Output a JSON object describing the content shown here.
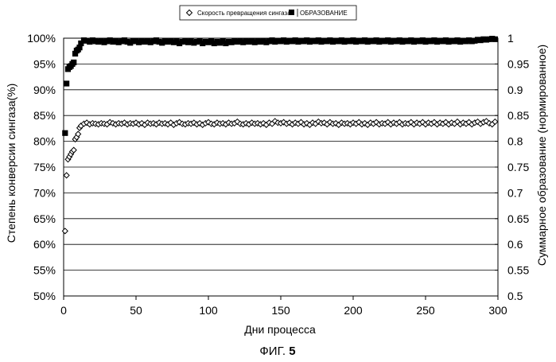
{
  "chart_data": {
    "type": "scatter",
    "title": "",
    "figure_label_text": "ФИГ.",
    "figure_label_number": "5",
    "xlabel": "Дни процесса",
    "ylabel_left": "Степень конверсии сингаза(%)",
    "ylabel_right": "Суммарное образование (нормированное)",
    "xlim": [
      0,
      300
    ],
    "x_ticks": [
      "0",
      "50",
      "100",
      "150",
      "200",
      "250",
      "300"
    ],
    "ylim_left": [
      50,
      100
    ],
    "y_ticks_left": [
      "50%",
      "55%",
      "60%",
      "65%",
      "70%",
      "75%",
      "80%",
      "85%",
      "90%",
      "95%",
      "100%"
    ],
    "ylim_right": [
      0.5,
      1.0
    ],
    "y_ticks_right": [
      "0.5",
      "0.55",
      "0.6",
      "0.65",
      "0.7",
      "0.75",
      "0.8",
      "0.85",
      "0.9",
      "0.95",
      "1"
    ],
    "grid": "horizontal",
    "legend_position": "top-center",
    "series": [
      {
        "name": "Скорость превращения сингаза",
        "axis": "left",
        "marker": "open-diamond",
        "color": "#000000",
        "points": [
          [
            1,
            62.6
          ],
          [
            2,
            73.4
          ],
          [
            3,
            76.5
          ],
          [
            4,
            77.0
          ],
          [
            5,
            77.5
          ],
          [
            6,
            78.0
          ],
          [
            7,
            78.3
          ],
          [
            8,
            80.4
          ],
          [
            9,
            80.8
          ],
          [
            10,
            81.4
          ],
          [
            11,
            82.6
          ],
          [
            12,
            83.0
          ],
          [
            14,
            83.4
          ],
          [
            16,
            83.6
          ],
          [
            18,
            83.3
          ],
          [
            20,
            83.5
          ],
          [
            22,
            83.4
          ],
          [
            24,
            83.3
          ],
          [
            26,
            83.5
          ],
          [
            28,
            83.4
          ],
          [
            30,
            83.3
          ],
          [
            32,
            83.7
          ],
          [
            34,
            83.5
          ],
          [
            36,
            83.3
          ],
          [
            38,
            83.5
          ],
          [
            40,
            83.4
          ],
          [
            42,
            83.6
          ],
          [
            44,
            83.3
          ],
          [
            46,
            83.5
          ],
          [
            48,
            83.4
          ],
          [
            50,
            83.6
          ],
          [
            52,
            83.3
          ],
          [
            54,
            83.5
          ],
          [
            56,
            83.2
          ],
          [
            58,
            83.6
          ],
          [
            60,
            83.4
          ],
          [
            62,
            83.5
          ],
          [
            64,
            83.3
          ],
          [
            66,
            83.6
          ],
          [
            68,
            83.4
          ],
          [
            70,
            83.5
          ],
          [
            72,
            83.3
          ],
          [
            74,
            83.6
          ],
          [
            76,
            83.2
          ],
          [
            78,
            83.5
          ],
          [
            80,
            83.7
          ],
          [
            82,
            83.4
          ],
          [
            84,
            83.3
          ],
          [
            86,
            83.5
          ],
          [
            88,
            83.4
          ],
          [
            90,
            83.6
          ],
          [
            92,
            83.3
          ],
          [
            94,
            83.5
          ],
          [
            96,
            83.2
          ],
          [
            98,
            83.5
          ],
          [
            100,
            83.7
          ],
          [
            102,
            83.4
          ],
          [
            104,
            83.3
          ],
          [
            106,
            83.6
          ],
          [
            108,
            83.4
          ],
          [
            110,
            83.5
          ],
          [
            112,
            83.3
          ],
          [
            114,
            83.6
          ],
          [
            116,
            83.4
          ],
          [
            118,
            83.5
          ],
          [
            120,
            83.8
          ],
          [
            122,
            83.4
          ],
          [
            124,
            83.3
          ],
          [
            126,
            83.5
          ],
          [
            128,
            83.3
          ],
          [
            130,
            83.6
          ],
          [
            132,
            83.4
          ],
          [
            134,
            83.5
          ],
          [
            136,
            83.3
          ],
          [
            138,
            83.5
          ],
          [
            140,
            83.2
          ],
          [
            142,
            83.6
          ],
          [
            144,
            83.4
          ],
          [
            146,
            83.9
          ],
          [
            148,
            83.6
          ],
          [
            150,
            83.5
          ],
          [
            152,
            83.7
          ],
          [
            154,
            83.4
          ],
          [
            156,
            83.6
          ],
          [
            158,
            83.3
          ],
          [
            160,
            83.6
          ],
          [
            162,
            83.4
          ],
          [
            164,
            83.7
          ],
          [
            166,
            83.3
          ],
          [
            168,
            83.5
          ],
          [
            170,
            83.2
          ],
          [
            172,
            83.6
          ],
          [
            174,
            83.4
          ],
          [
            176,
            83.8
          ],
          [
            178,
            83.5
          ],
          [
            180,
            83.6
          ],
          [
            182,
            83.3
          ],
          [
            184,
            83.7
          ],
          [
            186,
            83.4
          ],
          [
            188,
            83.5
          ],
          [
            190,
            83.2
          ],
          [
            192,
            83.6
          ],
          [
            194,
            83.4
          ],
          [
            196,
            83.5
          ],
          [
            198,
            83.3
          ],
          [
            200,
            83.6
          ],
          [
            202,
            83.4
          ],
          [
            204,
            83.7
          ],
          [
            206,
            83.3
          ],
          [
            208,
            83.5
          ],
          [
            210,
            83.2
          ],
          [
            212,
            83.6
          ],
          [
            214,
            83.4
          ],
          [
            216,
            83.7
          ],
          [
            218,
            83.3
          ],
          [
            220,
            83.5
          ],
          [
            222,
            83.4
          ],
          [
            224,
            83.7
          ],
          [
            226,
            83.3
          ],
          [
            228,
            83.6
          ],
          [
            230,
            83.4
          ],
          [
            232,
            83.7
          ],
          [
            234,
            83.3
          ],
          [
            236,
            83.5
          ],
          [
            238,
            83.4
          ],
          [
            240,
            83.7
          ],
          [
            242,
            83.3
          ],
          [
            244,
            83.6
          ],
          [
            246,
            83.4
          ],
          [
            248,
            83.7
          ],
          [
            250,
            83.3
          ],
          [
            252,
            83.6
          ],
          [
            254,
            83.4
          ],
          [
            256,
            83.7
          ],
          [
            258,
            83.3
          ],
          [
            260,
            83.6
          ],
          [
            262,
            83.4
          ],
          [
            264,
            83.7
          ],
          [
            266,
            83.3
          ],
          [
            268,
            83.6
          ],
          [
            270,
            83.4
          ],
          [
            272,
            83.8
          ],
          [
            274,
            83.3
          ],
          [
            276,
            83.6
          ],
          [
            278,
            83.4
          ],
          [
            280,
            83.7
          ],
          [
            282,
            83.3
          ],
          [
            284,
            83.6
          ],
          [
            286,
            83.8
          ],
          [
            288,
            83.4
          ],
          [
            290,
            83.7
          ],
          [
            292,
            83.9
          ],
          [
            294,
            83.5
          ],
          [
            296,
            83.3
          ],
          [
            298,
            83.8
          ]
        ]
      },
      {
        "name": "ОБРАЗОВАНИЕ",
        "axis": "right",
        "marker": "filled-square",
        "color": "#000000",
        "points": [
          [
            1,
            0.816
          ],
          [
            2,
            0.912
          ],
          [
            3,
            0.94
          ],
          [
            4,
            0.944
          ],
          [
            5,
            0.946
          ],
          [
            6,
            0.95
          ],
          [
            7,
            0.953
          ],
          [
            8,
            0.97
          ],
          [
            9,
            0.976
          ],
          [
            10,
            0.978
          ],
          [
            11,
            0.982
          ],
          [
            12,
            0.99
          ],
          [
            14,
            0.996
          ],
          [
            16,
            0.995
          ],
          [
            18,
            0.993
          ],
          [
            20,
            0.996
          ],
          [
            22,
            0.994
          ],
          [
            24,
            0.993
          ],
          [
            26,
            0.995
          ],
          [
            28,
            0.992
          ],
          [
            30,
            0.994
          ],
          [
            32,
            0.996
          ],
          [
            34,
            0.993
          ],
          [
            36,
            0.995
          ],
          [
            38,
            0.992
          ],
          [
            40,
            0.994
          ],
          [
            42,
            0.996
          ],
          [
            44,
            0.993
          ],
          [
            46,
            0.991
          ],
          [
            48,
            0.994
          ],
          [
            50,
            0.995
          ],
          [
            52,
            0.992
          ],
          [
            54,
            0.994
          ],
          [
            56,
            0.993
          ],
          [
            58,
            0.995
          ],
          [
            60,
            0.992
          ],
          [
            62,
            0.994
          ],
          [
            64,
            0.996
          ],
          [
            66,
            0.993
          ],
          [
            68,
            0.991
          ],
          [
            70,
            0.994
          ],
          [
            72,
            0.993
          ],
          [
            74,
            0.995
          ],
          [
            76,
            0.992
          ],
          [
            78,
            0.994
          ],
          [
            80,
            0.99
          ],
          [
            82,
            0.993
          ],
          [
            84,
            0.995
          ],
          [
            86,
            0.992
          ],
          [
            88,
            0.994
          ],
          [
            90,
            0.991
          ],
          [
            92,
            0.993
          ],
          [
            94,
            0.995
          ],
          [
            96,
            0.99
          ],
          [
            98,
            0.993
          ],
          [
            100,
            0.992
          ],
          [
            102,
            0.994
          ],
          [
            104,
            0.99
          ],
          [
            106,
            0.993
          ],
          [
            108,
            0.991
          ],
          [
            110,
            0.994
          ],
          [
            112,
            0.99
          ],
          [
            114,
            0.993
          ],
          [
            116,
            0.992
          ],
          [
            118,
            0.994
          ],
          [
            120,
            0.993
          ],
          [
            122,
            0.995
          ],
          [
            124,
            0.992
          ],
          [
            126,
            0.994
          ],
          [
            128,
            0.993
          ],
          [
            130,
            0.995
          ],
          [
            132,
            0.992
          ],
          [
            134,
            0.994
          ],
          [
            136,
            0.993
          ],
          [
            138,
            0.995
          ],
          [
            140,
            0.992
          ],
          [
            142,
            0.994
          ],
          [
            144,
            0.996
          ],
          [
            146,
            0.993
          ],
          [
            148,
            0.995
          ],
          [
            150,
            0.994
          ],
          [
            152,
            0.996
          ],
          [
            154,
            0.993
          ],
          [
            156,
            0.995
          ],
          [
            158,
            0.994
          ],
          [
            160,
            0.996
          ],
          [
            162,
            0.993
          ],
          [
            164,
            0.995
          ],
          [
            166,
            0.994
          ],
          [
            168,
            0.996
          ],
          [
            170,
            0.993
          ],
          [
            172,
            0.995
          ],
          [
            174,
            0.994
          ],
          [
            176,
            0.996
          ],
          [
            178,
            0.993
          ],
          [
            180,
            0.995
          ],
          [
            182,
            0.994
          ],
          [
            184,
            0.996
          ],
          [
            186,
            0.993
          ],
          [
            188,
            0.995
          ],
          [
            190,
            0.994
          ],
          [
            192,
            0.996
          ],
          [
            194,
            0.993
          ],
          [
            196,
            0.995
          ],
          [
            198,
            0.994
          ],
          [
            200,
            0.996
          ],
          [
            202,
            0.993
          ],
          [
            204,
            0.995
          ],
          [
            206,
            0.994
          ],
          [
            208,
            0.996
          ],
          [
            210,
            0.993
          ],
          [
            212,
            0.995
          ],
          [
            214,
            0.994
          ],
          [
            216,
            0.996
          ],
          [
            218,
            0.993
          ],
          [
            220,
            0.995
          ],
          [
            222,
            0.994
          ],
          [
            224,
            0.996
          ],
          [
            226,
            0.993
          ],
          [
            228,
            0.995
          ],
          [
            230,
            0.994
          ],
          [
            232,
            0.996
          ],
          [
            234,
            0.993
          ],
          [
            236,
            0.995
          ],
          [
            238,
            0.994
          ],
          [
            240,
            0.996
          ],
          [
            242,
            0.993
          ],
          [
            244,
            0.995
          ],
          [
            246,
            0.994
          ],
          [
            248,
            0.996
          ],
          [
            250,
            0.993
          ],
          [
            252,
            0.995
          ],
          [
            254,
            0.994
          ],
          [
            256,
            0.996
          ],
          [
            258,
            0.993
          ],
          [
            260,
            0.995
          ],
          [
            262,
            0.994
          ],
          [
            264,
            0.996
          ],
          [
            266,
            0.993
          ],
          [
            268,
            0.995
          ],
          [
            270,
            0.994
          ],
          [
            272,
            0.996
          ],
          [
            274,
            0.993
          ],
          [
            276,
            0.995
          ],
          [
            278,
            0.994
          ],
          [
            280,
            0.996
          ],
          [
            282,
            0.994
          ],
          [
            284,
            0.995
          ],
          [
            286,
            0.997
          ],
          [
            288,
            0.996
          ],
          [
            290,
            0.998
          ],
          [
            292,
            0.997
          ],
          [
            294,
            0.998
          ],
          [
            296,
            0.999
          ],
          [
            298,
            0.998
          ]
        ]
      }
    ]
  }
}
